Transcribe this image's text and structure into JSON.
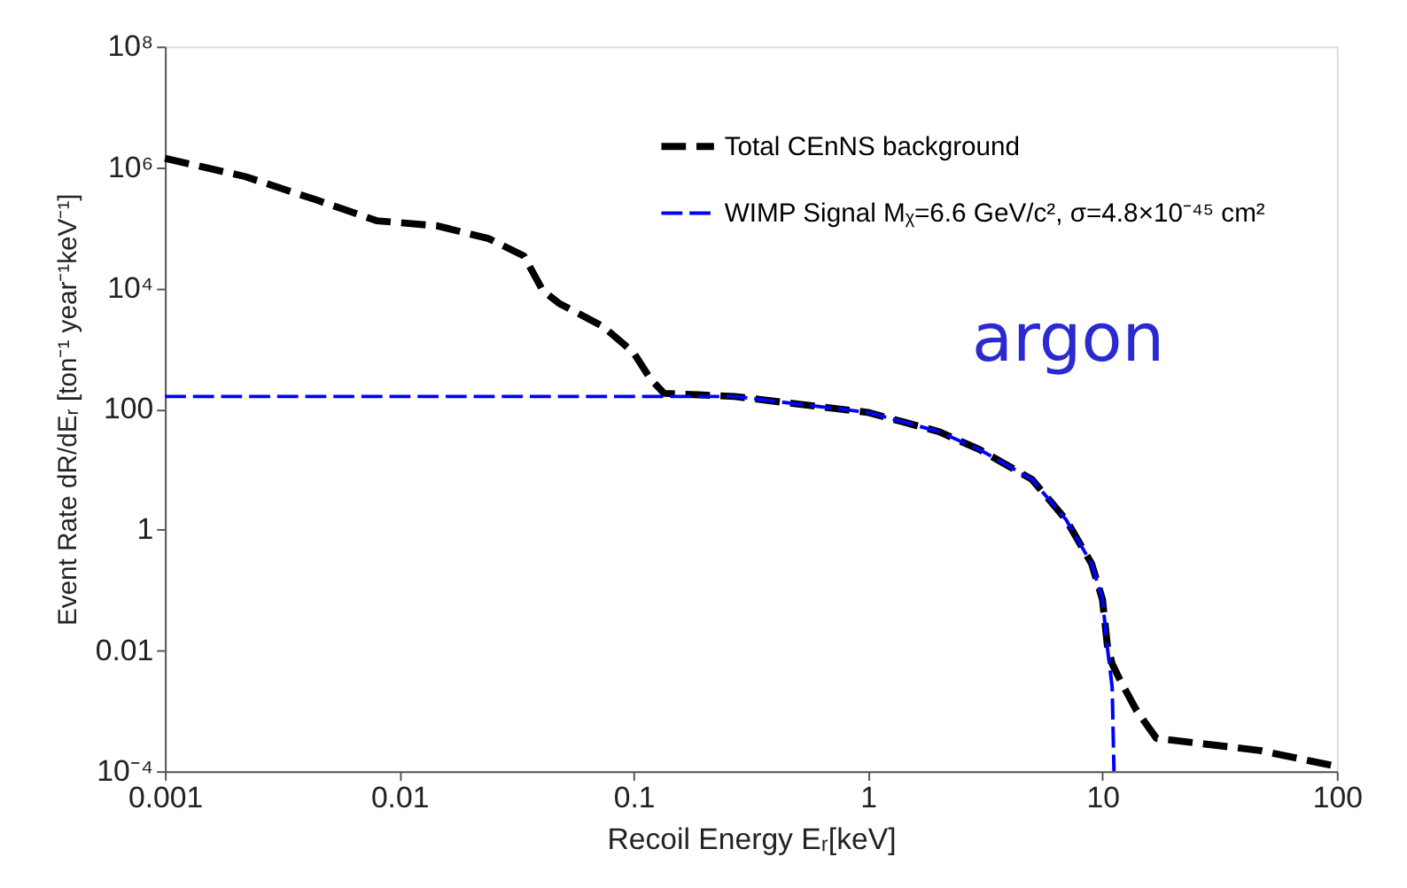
{
  "chart_data": {
    "type": "line",
    "xlabel": "Recoil Energy Eᵣ[keV]",
    "ylabel": "Event Rate dR/dEᵣ [ton⁻¹ year⁻¹keV⁻¹]",
    "log": "xy",
    "xlim": [
      0.001,
      100
    ],
    "ylim": [
      0.0001,
      100000000
    ],
    "xticks": [
      0.001,
      0.01,
      0.1,
      1,
      10,
      100
    ],
    "yticks": [
      {
        "value": 0.0001,
        "label": "10⁻⁴"
      },
      0.01,
      1,
      100,
      {
        "value": 10000,
        "label": "10⁴"
      },
      {
        "value": 1000000,
        "label": "10⁶"
      },
      {
        "value": 100000000,
        "label": "10⁸"
      }
    ],
    "grid": false,
    "legend": "top right",
    "line_style": "dashed",
    "annotations": [
      "argon"
    ],
    "series": [
      {
        "name": "Total CEnNS background",
        "color": "#000000",
        "x": [
          0.001,
          0.0022,
          0.0044,
          0.008,
          0.0145,
          0.024,
          0.034,
          0.041,
          0.048,
          0.074,
          0.1,
          0.118,
          0.135,
          0.19,
          0.27,
          0.5,
          1,
          2,
          3,
          5,
          7,
          9,
          10,
          10.5,
          11,
          12,
          14,
          17,
          47,
          100
        ],
        "values": [
          1400000,
          700000,
          290000,
          130000,
          107000,
          66000,
          34000,
          9000,
          5600,
          2300,
          850,
          310,
          180,
          170,
          160,
          120,
          87,
          42,
          21,
          6.8,
          1.45,
          0.27,
          0.07,
          0.012,
          0.006,
          0.003,
          0.001,
          0.00035,
          0.00022,
          0.00012
        ]
      },
      {
        "name": "WIMP Signal Mᵪ=6.6 GeV/c², σ=4.8×10⁻⁴⁵ cm²",
        "color": "#0000ff",
        "x": [
          0.001,
          0.01,
          0.1,
          0.27,
          0.5,
          1,
          2,
          3,
          5,
          7,
          9,
          10,
          10.5,
          11,
          11.2
        ],
        "values": [
          160,
          160,
          160,
          160,
          120,
          87,
          42,
          21,
          6.8,
          1.45,
          0.27,
          0.07,
          0.011,
          0.0025,
          0.0001
        ]
      }
    ]
  }
}
